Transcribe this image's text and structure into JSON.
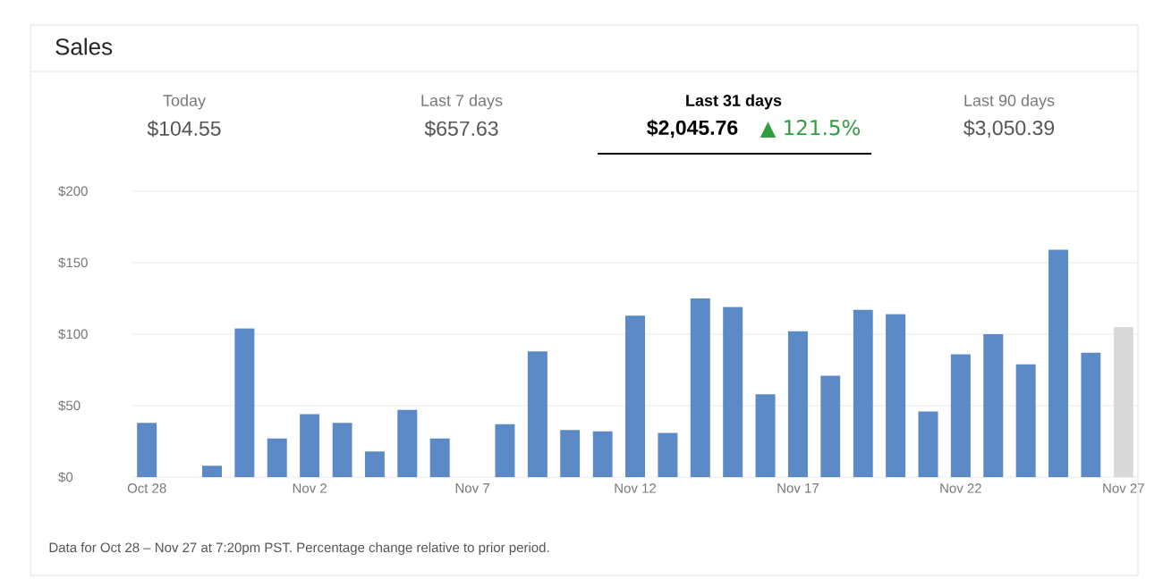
{
  "chart_data": {
    "type": "bar",
    "title": "Sales",
    "categories": [
      "Oct 28",
      null,
      null,
      null,
      null,
      "Nov 2",
      null,
      null,
      null,
      null,
      "Nov 7",
      null,
      null,
      null,
      null,
      "Nov 12",
      null,
      null,
      null,
      null,
      "Nov 17",
      null,
      null,
      null,
      null,
      "Nov 22",
      null,
      null,
      null,
      null,
      "Nov 27"
    ],
    "values": [
      38,
      0,
      8,
      104,
      27,
      44,
      38,
      18,
      47,
      27,
      0,
      37,
      88,
      33,
      32,
      113,
      31,
      125,
      119,
      58,
      102,
      71,
      117,
      114,
      46,
      86,
      100,
      79,
      159,
      87,
      105
    ],
    "colors": [
      "#5b8ac6",
      "#5b8ac6",
      "#5b8ac6",
      "#5b8ac6",
      "#5b8ac6",
      "#5b8ac6",
      "#5b8ac6",
      "#5b8ac6",
      "#5b8ac6",
      "#5b8ac6",
      "#5b8ac6",
      "#5b8ac6",
      "#5b8ac6",
      "#5b8ac6",
      "#5b8ac6",
      "#5b8ac6",
      "#5b8ac6",
      "#5b8ac6",
      "#5b8ac6",
      "#5b8ac6",
      "#5b8ac6",
      "#5b8ac6",
      "#5b8ac6",
      "#5b8ac6",
      "#5b8ac6",
      "#5b8ac6",
      "#5b8ac6",
      "#5b8ac6",
      "#5b8ac6",
      "#5b8ac6",
      "#d9d9d9"
    ],
    "ylim": [
      0,
      200
    ],
    "yticks": [
      {
        "value": 0,
        "label": "$0"
      },
      {
        "value": 50,
        "label": "$50"
      },
      {
        "value": 100,
        "label": "$100"
      },
      {
        "value": 150,
        "label": "$150"
      },
      {
        "value": 200,
        "label": "$200"
      }
    ],
    "grid": "y",
    "annotations": [
      "Today",
      "$104.55",
      "Last 7 days",
      "$657.63",
      "Last 31 days",
      "$2,045.76",
      "▲ 121.5%",
      "Last 90 days",
      "$3,050.39",
      "Data for Oct 28 – Nov 27 at 7:20pm PST. Percentage change relative to prior period."
    ]
  }
}
